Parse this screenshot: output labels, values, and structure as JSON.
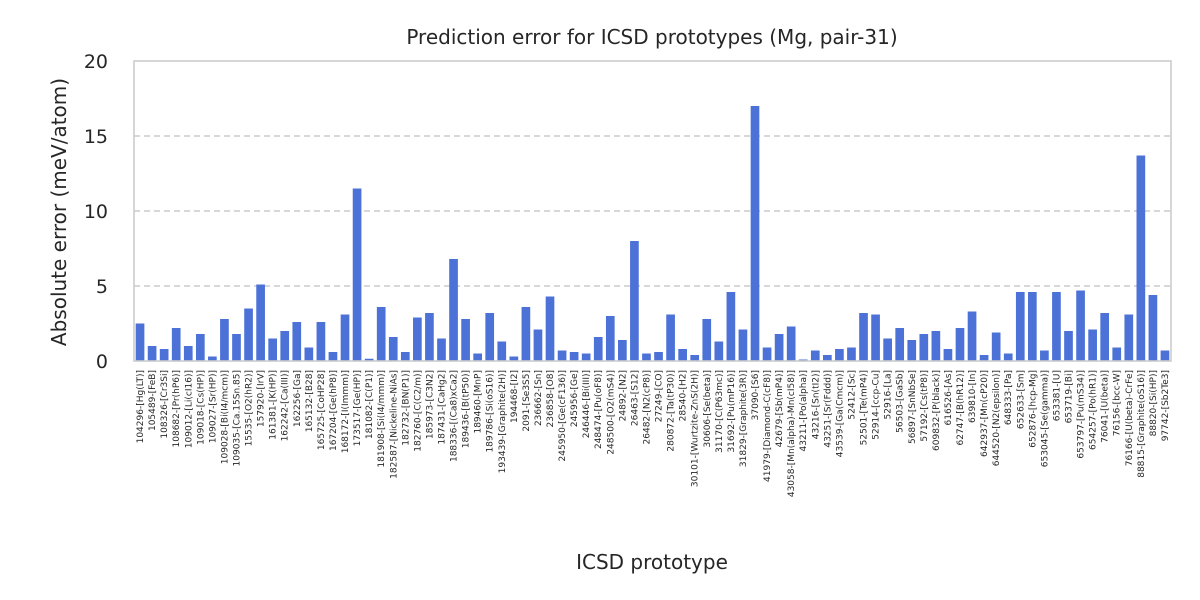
{
  "chart_data": {
    "type": "bar",
    "title": "Prediction error for ICSD prototypes (Mg, pair-31)",
    "xlabel": "ICSD prototype",
    "ylabel": "Absolute error (meV/atom)",
    "ylim": [
      0,
      20
    ],
    "yticks": [
      "0",
      "5",
      "10",
      "15",
      "20"
    ],
    "grid": "horizontal dashed",
    "bar_color": "#4C72D8",
    "categories": [
      "104296-[Hg(LT)]",
      "105489-[FeB]",
      "108326-[Cr3Si]",
      "108682-[Pr(hP6)]",
      "109012-[Li(cI16)]",
      "109018-[Cs(HP)]",
      "109027-[Sr(HP)]",
      "109028-[Bi(I4/mcm)]",
      "109035-[Ca.15Sn.85]",
      "15535-[O2(hR2)]",
      "157920-[IrV]",
      "161381-[K(HP)]",
      "162242-[Ca(III)]",
      "162256-[Ga]",
      "165132-[B28]",
      "165725-[CoHP28]",
      "167204-[Ge(hP8)]",
      "168172-[I(Immm)]",
      "173517-[Ge(HP)]",
      "181082-[C(P1)]",
      "181908-[Si(I4/mmm)]",
      "182587-[Nickeline-NiAs]",
      "182732-[BN(P1)]",
      "182760-[C(C2/m)]",
      "185973-[C3N2]",
      "187431-[CaHg2]",
      "188336-[(Ca8)xCa2]",
      "189436-[B(tP50)]",
      "189460-[MnP]",
      "189786-[Si(oS16)]",
      "193439-[Graphite(2H)]",
      "194468-[I2]",
      "2091-[Se3S5]",
      "236662-[Sn]",
      "236858-[O8]",
      "245950-[Ge(cF136)]",
      "245956-[Ge]",
      "246446-[Bi(III)]",
      "248474-[Pu(oF8)]",
      "248500-[O2(mS4)]",
      "24892-[N2]",
      "26463-[S12]",
      "26482-[N2(cP8)]",
      "27249-[CO]",
      "280872-[Ta(tP30)]",
      "28540-[H2]",
      "30101-[Wurtzite-ZnS(2H)]",
      "30606-[Se(beta)]",
      "31170-[C(P63mc)]",
      "31692-[Pu(mP16)]",
      "31829-[Graphite(3R)]",
      "37090-[S6]",
      "41979-[Diamond-C(cF8)]",
      "42679-[Sb(mP4)]",
      "43058-[Mn(alpha)-Mn(cI58)]",
      "43211-[Po(alpha)]",
      "43216-[Sn(tI2)]",
      "43251-[Sr(Fddd)]",
      "43539-[Ga(Cmcm)]",
      "52412-[Sc]",
      "52501-[Te(mP4)]",
      "52914-[ccp-Cu]",
      "52916-[La]",
      "56503-[GaSb]",
      "56897-[SnNbSe]",
      "57192-[Cs(tP8)]",
      "609832-[P(black)]",
      "616526-[As]",
      "62747-[B(hR12)]",
      "639810-[In]",
      "642937-[Mn(cP20)]",
      "644520-[N2(epsilon)]",
      "648333-[Pa]",
      "652633-[Sm]",
      "652876-[hcp-Mg]",
      "653045-[Se(gamma)]",
      "653381-[U]",
      "653719-[Bi]",
      "653797-[Pu(mS34)]",
      "654257-[Po(hR1)]",
      "76041-[U(beta)]",
      "76156-[bcc-W]",
      "76166-[U(beta)-CrFe]",
      "88815-[Graphite(oS16)]",
      "88820-[Si(HP)]",
      "97742-[Sb2Te3]"
    ],
    "values": [
      2.5,
      1.0,
      0.8,
      2.2,
      1.0,
      1.8,
      0.3,
      2.8,
      1.8,
      3.5,
      5.1,
      1.5,
      2.0,
      2.6,
      0.9,
      2.6,
      0.6,
      3.1,
      11.5,
      0.15,
      3.6,
      1.6,
      0.6,
      2.9,
      3.2,
      1.5,
      6.8,
      2.8,
      0.5,
      3.2,
      1.3,
      0.3,
      3.6,
      2.1,
      4.3,
      0.7,
      0.6,
      0.5,
      1.6,
      3.0,
      1.4,
      8.0,
      0.5,
      0.6,
      3.1,
      0.8,
      0.4,
      2.8,
      1.3,
      4.6,
      2.1,
      17.0,
      0.9,
      1.8,
      2.3,
      0.1,
      0.7,
      0.4,
      0.8,
      0.9,
      3.2,
      3.1,
      1.5,
      2.2,
      1.4,
      1.8,
      2.0,
      0.8,
      2.2,
      3.3,
      0.4,
      1.9,
      0.5,
      4.6,
      4.6,
      0.7,
      4.6,
      2.0,
      4.7,
      2.1,
      3.2,
      0.9,
      3.1,
      13.7,
      4.4,
      0.7
    ]
  }
}
